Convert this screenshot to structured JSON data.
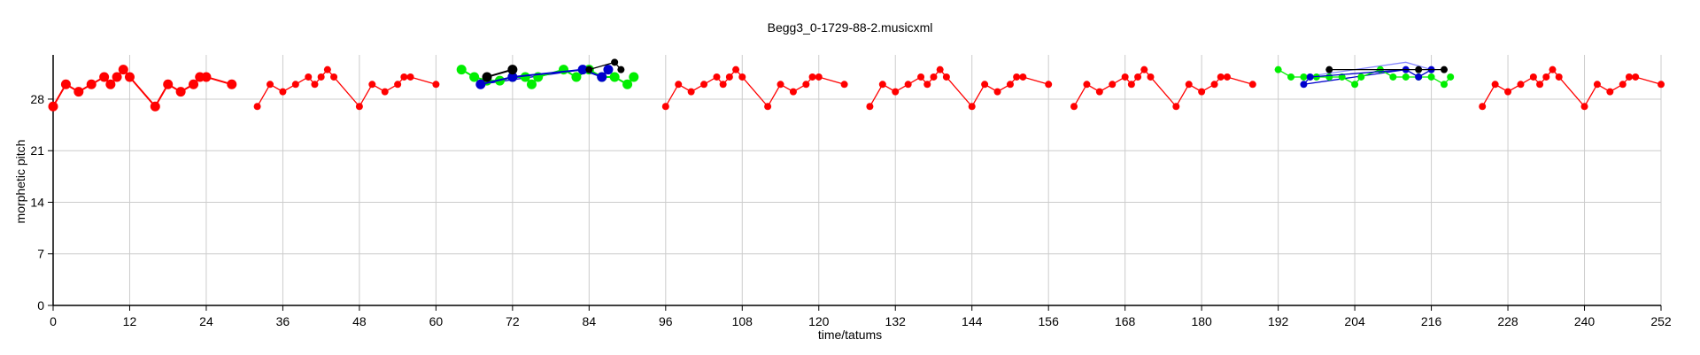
{
  "chart_data": {
    "type": "scatter",
    "title": "Begg3_0-1729-88-2.musicxml",
    "xlabel": "time/tatums",
    "ylabel": "morphetic pitch",
    "xlim": [
      0,
      252
    ],
    "ylim": [
      0,
      34
    ],
    "grid": true,
    "x_ticks": [
      "0",
      "12",
      "24",
      "36",
      "48",
      "60",
      "72",
      "84",
      "96",
      "108",
      "120",
      "132",
      "144",
      "156",
      "168",
      "180",
      "192",
      "204",
      "216",
      "228",
      "240",
      "252"
    ],
    "y_ticks": [
      "0",
      "7",
      "14",
      "21",
      "28"
    ],
    "series": [
      {
        "color": "#ff0000",
        "lines": [
          [
            [
              0,
              27
            ],
            [
              2,
              30
            ],
            [
              4,
              29
            ],
            [
              6,
              30
            ],
            [
              8,
              31
            ],
            [
              9,
              30
            ],
            [
              10,
              31
            ],
            [
              11,
              32
            ],
            [
              12,
              31
            ],
            [
              16,
              27
            ],
            [
              18,
              30
            ],
            [
              20,
              29
            ],
            [
              22,
              30
            ],
            [
              23,
              31
            ],
            [
              24,
              31
            ],
            [
              28,
              30
            ]
          ],
          [
            [
              32,
              27
            ],
            [
              34,
              30
            ],
            [
              36,
              29
            ],
            [
              38,
              30
            ],
            [
              40,
              31
            ],
            [
              41,
              30
            ],
            [
              42,
              31
            ],
            [
              43,
              32
            ],
            [
              44,
              31
            ],
            [
              48,
              27
            ],
            [
              50,
              30
            ],
            [
              52,
              29
            ],
            [
              54,
              30
            ],
            [
              55,
              31
            ],
            [
              56,
              31
            ],
            [
              60,
              30
            ]
          ],
          [
            [
              96,
              27
            ],
            [
              98,
              30
            ],
            [
              100,
              29
            ],
            [
              102,
              30
            ],
            [
              104,
              31
            ],
            [
              105,
              30
            ],
            [
              106,
              31
            ],
            [
              107,
              32
            ],
            [
              108,
              31
            ],
            [
              112,
              27
            ],
            [
              114,
              30
            ],
            [
              116,
              29
            ],
            [
              118,
              30
            ],
            [
              119,
              31
            ],
            [
              120,
              31
            ],
            [
              124,
              30
            ]
          ],
          [
            [
              128,
              27
            ],
            [
              130,
              30
            ],
            [
              132,
              29
            ],
            [
              134,
              30
            ],
            [
              136,
              31
            ],
            [
              137,
              30
            ],
            [
              138,
              31
            ],
            [
              139,
              32
            ],
            [
              140,
              31
            ],
            [
              144,
              27
            ],
            [
              146,
              30
            ],
            [
              148,
              29
            ],
            [
              150,
              30
            ],
            [
              151,
              31
            ],
            [
              152,
              31
            ],
            [
              156,
              30
            ]
          ],
          [
            [
              160,
              27
            ],
            [
              162,
              30
            ],
            [
              164,
              29
            ],
            [
              166,
              30
            ],
            [
              168,
              31
            ],
            [
              169,
              30
            ],
            [
              170,
              31
            ],
            [
              171,
              32
            ],
            [
              172,
              31
            ],
            [
              176,
              27
            ],
            [
              178,
              30
            ],
            [
              180,
              29
            ],
            [
              182,
              30
            ],
            [
              183,
              31
            ],
            [
              184,
              31
            ],
            [
              188,
              30
            ]
          ],
          [
            [
              224,
              27
            ],
            [
              226,
              30
            ],
            [
              228,
              29
            ],
            [
              230,
              30
            ],
            [
              232,
              31
            ],
            [
              233,
              30
            ],
            [
              234,
              31
            ],
            [
              235,
              32
            ],
            [
              236,
              31
            ],
            [
              240,
              27
            ],
            [
              242,
              30
            ],
            [
              244,
              29
            ],
            [
              246,
              30
            ],
            [
              247,
              31
            ],
            [
              248,
              31
            ],
            [
              252,
              30
            ]
          ]
        ],
        "big_segments": [
          0
        ]
      },
      {
        "color": "#00ee00",
        "lines": [
          [
            [
              64,
              32
            ],
            [
              66,
              31
            ],
            [
              68,
              30.5
            ],
            [
              70,
              30.5
            ],
            [
              72,
              31
            ],
            [
              74,
              31
            ],
            [
              75,
              30
            ],
            [
              76,
              31
            ],
            [
              80,
              32
            ],
            [
              82,
              31
            ],
            [
              84,
              32
            ],
            [
              86,
              31
            ],
            [
              88,
              31
            ],
            [
              90,
              30
            ],
            [
              91,
              31
            ]
          ],
          [
            [
              192,
              32
            ],
            [
              194,
              31
            ],
            [
              196,
              31
            ],
            [
              198,
              31
            ],
            [
              200,
              31
            ],
            [
              202,
              31
            ],
            [
              204,
              30
            ],
            [
              205,
              31
            ],
            [
              208,
              32
            ],
            [
              210,
              31
            ],
            [
              212,
              31
            ],
            [
              214,
              31
            ],
            [
              216,
              31
            ],
            [
              218,
              30
            ],
            [
              219,
              31
            ]
          ]
        ],
        "big_segments": [
          0
        ]
      },
      {
        "color": "#0000cc",
        "lines": [
          [
            [
              67,
              30
            ],
            [
              72,
              31
            ],
            [
              83,
              32
            ],
            [
              86,
              31
            ],
            [
              87,
              32
            ]
          ],
          [
            [
              196,
              30
            ],
            [
              197,
              31
            ],
            [
              212,
              32
            ],
            [
              214,
              31
            ],
            [
              216,
              32
            ]
          ]
        ],
        "big_segments": [
          0
        ]
      },
      {
        "color": "#000000",
        "lines": [
          [
            [
              68,
              31
            ],
            [
              72,
              32
            ]
          ],
          [
            [
              84,
              32
            ],
            [
              88,
              33
            ],
            [
              89,
              32
            ]
          ],
          [
            [
              200,
              32
            ],
            [
              214,
              32
            ],
            [
              218,
              32
            ]
          ]
        ],
        "big_segments": [
          0
        ]
      }
    ],
    "connectors": [
      {
        "color": "#0000cc",
        "points": [
          [
            67,
            30
          ],
          [
            83,
            32
          ]
        ]
      },
      {
        "color": "#0000cc",
        "points": [
          [
            196,
            30
          ],
          [
            212,
            32
          ]
        ]
      },
      {
        "color": "#8888ff",
        "points": [
          [
            196,
            31
          ],
          [
            212,
            33
          ],
          [
            216,
            32
          ]
        ]
      },
      {
        "color": "#336666",
        "points": [
          [
            68,
            31
          ],
          [
            72,
            32
          ]
        ]
      }
    ]
  }
}
